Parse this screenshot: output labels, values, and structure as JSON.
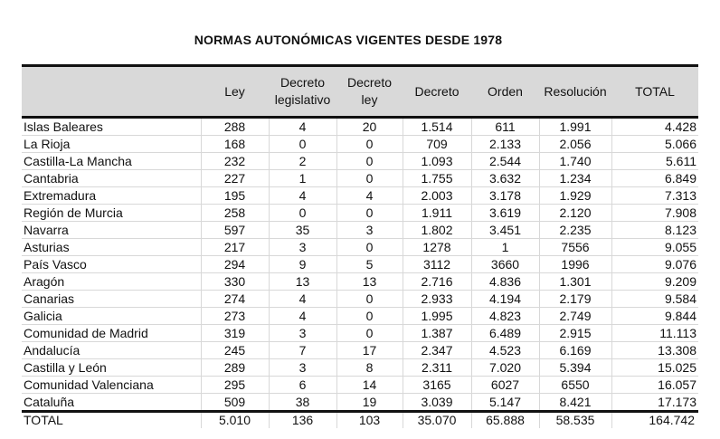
{
  "title": "NORMAS AUTONÓMICAS VIGENTES DESDE 1978",
  "headers": [
    "",
    "Ley",
    "Decreto legislativo",
    "Decreto ley",
    "Decreto",
    "Orden",
    "Resolución",
    "TOTAL"
  ],
  "rows": [
    [
      "Islas Baleares",
      "288",
      "4",
      "20",
      "1.514",
      "611",
      "1.991",
      "4.428"
    ],
    [
      "La Rioja",
      "168",
      "0",
      "0",
      "709",
      "2.133",
      "2.056",
      "5.066"
    ],
    [
      "Castilla-La Mancha",
      "232",
      "2",
      "0",
      "1.093",
      "2.544",
      "1.740",
      "5.611"
    ],
    [
      "Cantabria",
      "227",
      "1",
      "0",
      "1.755",
      "3.632",
      "1.234",
      "6.849"
    ],
    [
      "Extremadura",
      "195",
      "4",
      "4",
      "2.003",
      "3.178",
      "1.929",
      "7.313"
    ],
    [
      "Región de Murcia",
      "258",
      "0",
      "0",
      "1.911",
      "3.619",
      "2.120",
      "7.908"
    ],
    [
      "Navarra",
      "597",
      "35",
      "3",
      "1.802",
      "3.451",
      "2.235",
      "8.123"
    ],
    [
      "Asturias",
      "217",
      "3",
      "0",
      "1278",
      "1",
      "7556",
      "9.055"
    ],
    [
      "País Vasco",
      "294",
      "9",
      "5",
      "3112",
      "3660",
      "1996",
      "9.076"
    ],
    [
      "Aragón",
      "330",
      "13",
      "13",
      "2.716",
      "4.836",
      "1.301",
      "9.209"
    ],
    [
      "Canarias",
      "274",
      "4",
      "0",
      "2.933",
      "4.194",
      "2.179",
      "9.584"
    ],
    [
      "Galicia",
      "273",
      "4",
      "0",
      "1.995",
      "4.823",
      "2.749",
      "9.844"
    ],
    [
      "Comunidad de Madrid",
      "319",
      "3",
      "0",
      "1.387",
      "6.489",
      "2.915",
      "11.113"
    ],
    [
      "Andalucía",
      "245",
      "7",
      "17",
      "2.347",
      "4.523",
      "6.169",
      "13.308"
    ],
    [
      "Castilla y León",
      "289",
      "3",
      "8",
      "2.311",
      "7.020",
      "5.394",
      "15.025"
    ],
    [
      "Comunidad Valenciana",
      "295",
      "6",
      "14",
      "3165",
      "6027",
      "6550",
      "16.057"
    ],
    [
      "Cataluña",
      "509",
      "38",
      "19",
      "3.039",
      "5.147",
      "8.421",
      "17.173"
    ]
  ],
  "total_row": [
    "TOTAL",
    "5.010",
    "136",
    "103",
    "35.070",
    "65.888",
    "58.535",
    "164.742"
  ]
}
